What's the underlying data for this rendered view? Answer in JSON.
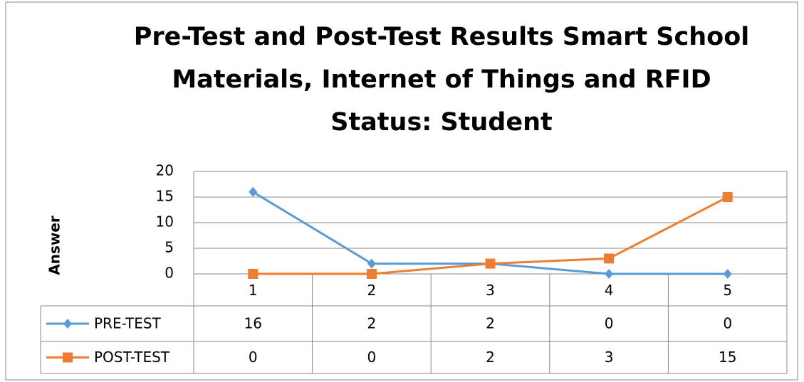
{
  "chart_data": {
    "type": "line",
    "title": "Pre-Test and Post-Test Results Smart School Materials, Internet of Things and RFID",
    "subtitle": "Status: Student",
    "y_label": "Answer",
    "categories": [
      "1",
      "2",
      "3",
      "4",
      "5"
    ],
    "series": [
      {
        "name": "PRE-TEST",
        "color": "#5b9bd5",
        "marker": "diamond",
        "values": [
          16,
          2,
          2,
          0,
          0
        ]
      },
      {
        "name": "POST-TEST",
        "color": "#ed7d31",
        "marker": "square",
        "values": [
          0,
          0,
          2,
          3,
          15
        ]
      }
    ],
    "ylim": [
      0,
      20
    ],
    "yticks": [
      0,
      5,
      10,
      15,
      20
    ],
    "grid": true,
    "data_table": true
  }
}
